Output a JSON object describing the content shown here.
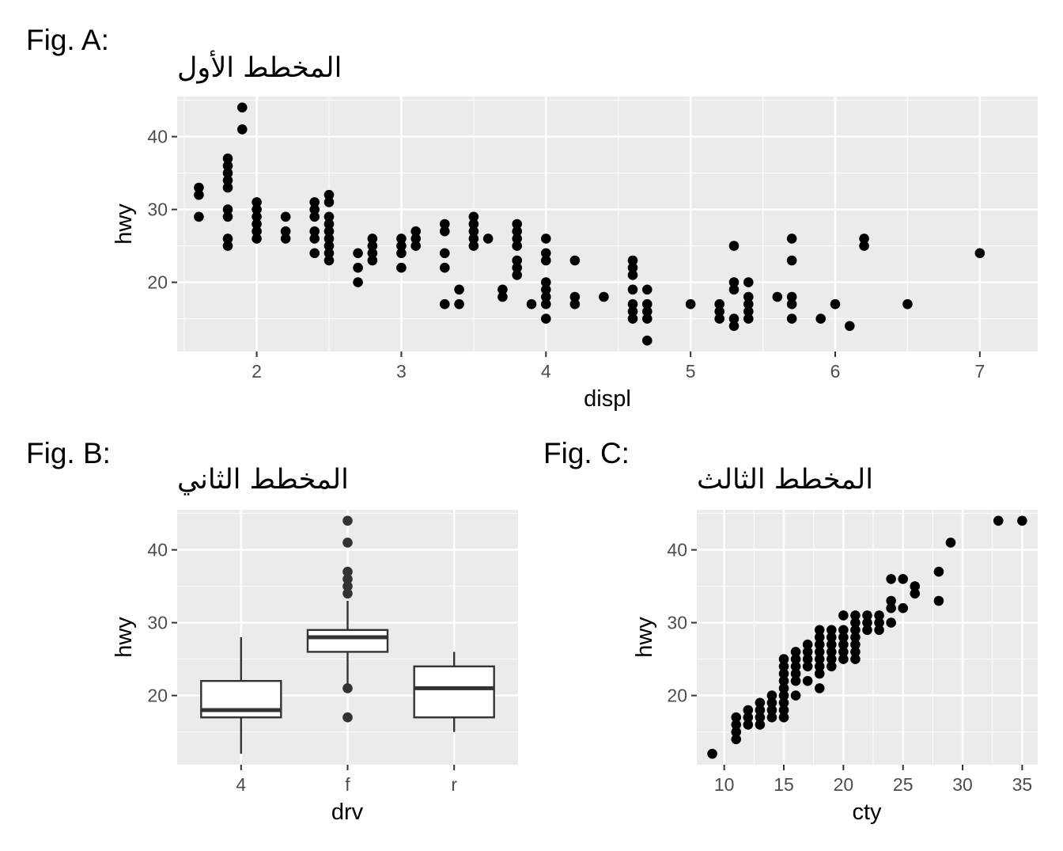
{
  "chart_data": [
    {
      "type": "scatter",
      "tag": "Fig. A:",
      "title": "المخطط الأول",
      "xlabel": "displ",
      "ylabel": "hwy",
      "xlim": [
        1.45,
        7.4
      ],
      "ylim": [
        10.5,
        45.5
      ],
      "xticks": [
        2,
        3,
        4,
        5,
        6,
        7
      ],
      "yticks": [
        20,
        30,
        40
      ],
      "grid": true,
      "points": [
        [
          1.6,
          29
        ],
        [
          1.6,
          32
        ],
        [
          1.6,
          33
        ],
        [
          1.8,
          25
        ],
        [
          1.8,
          26
        ],
        [
          1.8,
          29
        ],
        [
          1.8,
          30
        ],
        [
          1.8,
          33
        ],
        [
          1.8,
          34
        ],
        [
          1.8,
          35
        ],
        [
          1.8,
          36
        ],
        [
          1.8,
          37
        ],
        [
          1.9,
          41
        ],
        [
          1.9,
          44
        ],
        [
          2.0,
          26
        ],
        [
          2.0,
          27
        ],
        [
          2.0,
          28
        ],
        [
          2.0,
          29
        ],
        [
          2.0,
          30
        ],
        [
          2.0,
          31
        ],
        [
          2.2,
          26
        ],
        [
          2.2,
          27
        ],
        [
          2.2,
          29
        ],
        [
          2.4,
          24
        ],
        [
          2.4,
          26
        ],
        [
          2.4,
          27
        ],
        [
          2.4,
          29
        ],
        [
          2.4,
          30
        ],
        [
          2.4,
          31
        ],
        [
          2.5,
          23
        ],
        [
          2.5,
          24
        ],
        [
          2.5,
          25
        ],
        [
          2.5,
          26
        ],
        [
          2.5,
          27
        ],
        [
          2.5,
          28
        ],
        [
          2.5,
          29
        ],
        [
          2.5,
          31
        ],
        [
          2.5,
          32
        ],
        [
          2.7,
          20
        ],
        [
          2.7,
          22
        ],
        [
          2.7,
          24
        ],
        [
          2.8,
          23
        ],
        [
          2.8,
          24
        ],
        [
          2.8,
          25
        ],
        [
          2.8,
          26
        ],
        [
          3.0,
          22
        ],
        [
          3.0,
          24
        ],
        [
          3.0,
          25
        ],
        [
          3.0,
          26
        ],
        [
          3.1,
          25
        ],
        [
          3.1,
          26
        ],
        [
          3.1,
          27
        ],
        [
          3.3,
          17
        ],
        [
          3.3,
          22
        ],
        [
          3.3,
          24
        ],
        [
          3.3,
          27
        ],
        [
          3.3,
          28
        ],
        [
          3.4,
          17
        ],
        [
          3.4,
          19
        ],
        [
          3.5,
          25
        ],
        [
          3.5,
          26
        ],
        [
          3.5,
          27
        ],
        [
          3.5,
          28
        ],
        [
          3.5,
          29
        ],
        [
          3.6,
          26
        ],
        [
          3.7,
          18
        ],
        [
          3.7,
          19
        ],
        [
          3.8,
          21
        ],
        [
          3.8,
          22
        ],
        [
          3.8,
          23
        ],
        [
          3.8,
          25
        ],
        [
          3.8,
          26
        ],
        [
          3.8,
          27
        ],
        [
          3.8,
          28
        ],
        [
          3.9,
          17
        ],
        [
          4.0,
          15
        ],
        [
          4.0,
          17
        ],
        [
          4.0,
          18
        ],
        [
          4.0,
          19
        ],
        [
          4.0,
          20
        ],
        [
          4.0,
          23
        ],
        [
          4.0,
          24
        ],
        [
          4.0,
          26
        ],
        [
          4.2,
          17
        ],
        [
          4.2,
          18
        ],
        [
          4.2,
          23
        ],
        [
          4.4,
          18
        ],
        [
          4.6,
          15
        ],
        [
          4.6,
          16
        ],
        [
          4.6,
          17
        ],
        [
          4.6,
          19
        ],
        [
          4.6,
          21
        ],
        [
          4.6,
          22
        ],
        [
          4.6,
          23
        ],
        [
          4.7,
          12
        ],
        [
          4.7,
          15
        ],
        [
          4.7,
          16
        ],
        [
          4.7,
          17
        ],
        [
          4.7,
          19
        ],
        [
          5.0,
          17
        ],
        [
          5.2,
          15
        ],
        [
          5.2,
          16
        ],
        [
          5.2,
          17
        ],
        [
          5.3,
          14
        ],
        [
          5.3,
          15
        ],
        [
          5.3,
          19
        ],
        [
          5.3,
          20
        ],
        [
          5.3,
          25
        ],
        [
          5.4,
          15
        ],
        [
          5.4,
          16
        ],
        [
          5.4,
          17
        ],
        [
          5.4,
          18
        ],
        [
          5.4,
          20
        ],
        [
          5.6,
          18
        ],
        [
          5.7,
          15
        ],
        [
          5.7,
          17
        ],
        [
          5.7,
          18
        ],
        [
          5.7,
          23
        ],
        [
          5.7,
          26
        ],
        [
          5.9,
          15
        ],
        [
          6.0,
          17
        ],
        [
          6.1,
          14
        ],
        [
          6.2,
          25
        ],
        [
          6.2,
          26
        ],
        [
          6.5,
          17
        ],
        [
          7.0,
          24
        ]
      ]
    },
    {
      "type": "box",
      "tag": "Fig. B:",
      "title": "المخطط الثاني",
      "xlabel": "drv",
      "ylabel": "hwy",
      "categories": [
        "4",
        "f",
        "r"
      ],
      "ylim": [
        10.5,
        45.5
      ],
      "yticks": [
        20,
        30,
        40
      ],
      "grid": true,
      "boxes": [
        {
          "whisker_low": 12,
          "q1": 17,
          "median": 18,
          "q3": 22,
          "whisker_high": 28,
          "outliers": []
        },
        {
          "whisker_low": 21,
          "q1": 26,
          "median": 28,
          "q3": 29,
          "whisker_high": 33,
          "outliers": [
            17,
            21,
            34,
            35,
            36,
            37,
            41,
            44
          ]
        },
        {
          "whisker_low": 15,
          "q1": 17,
          "median": 21,
          "q3": 24,
          "whisker_high": 26,
          "outliers": []
        }
      ]
    },
    {
      "type": "scatter",
      "tag": "Fig. C:",
      "title": "المخطط الثالث",
      "xlabel": "cty",
      "ylabel": "hwy",
      "xlim": [
        7.7,
        36.3
      ],
      "ylim": [
        10.5,
        45.5
      ],
      "xticks": [
        10,
        15,
        20,
        25,
        30,
        35
      ],
      "yticks": [
        20,
        30,
        40
      ],
      "grid": true,
      "points": [
        [
          9,
          12
        ],
        [
          11,
          14
        ],
        [
          11,
          15
        ],
        [
          11,
          16
        ],
        [
          11,
          17
        ],
        [
          12,
          16
        ],
        [
          12,
          17
        ],
        [
          12,
          18
        ],
        [
          13,
          16
        ],
        [
          13,
          17
        ],
        [
          13,
          18
        ],
        [
          13,
          19
        ],
        [
          14,
          17
        ],
        [
          14,
          18
        ],
        [
          14,
          19
        ],
        [
          14,
          20
        ],
        [
          15,
          17
        ],
        [
          15,
          18
        ],
        [
          15,
          19
        ],
        [
          15,
          20
        ],
        [
          15,
          21
        ],
        [
          15,
          22
        ],
        [
          15,
          23
        ],
        [
          15,
          24
        ],
        [
          15,
          25
        ],
        [
          16,
          20
        ],
        [
          16,
          22
        ],
        [
          16,
          23
        ],
        [
          16,
          24
        ],
        [
          16,
          25
        ],
        [
          16,
          26
        ],
        [
          17,
          22
        ],
        [
          17,
          24
        ],
        [
          17,
          25
        ],
        [
          17,
          26
        ],
        [
          17,
          27
        ],
        [
          18,
          21
        ],
        [
          18,
          23
        ],
        [
          18,
          24
        ],
        [
          18,
          25
        ],
        [
          18,
          26
        ],
        [
          18,
          27
        ],
        [
          18,
          28
        ],
        [
          18,
          29
        ],
        [
          19,
          24
        ],
        [
          19,
          25
        ],
        [
          19,
          26
        ],
        [
          19,
          27
        ],
        [
          19,
          28
        ],
        [
          19,
          29
        ],
        [
          20,
          25
        ],
        [
          20,
          26
        ],
        [
          20,
          27
        ],
        [
          20,
          28
        ],
        [
          20,
          29
        ],
        [
          20,
          31
        ],
        [
          21,
          25
        ],
        [
          21,
          26
        ],
        [
          21,
          27
        ],
        [
          21,
          28
        ],
        [
          21,
          29
        ],
        [
          21,
          30
        ],
        [
          21,
          31
        ],
        [
          22,
          29
        ],
        [
          22,
          30
        ],
        [
          22,
          31
        ],
        [
          23,
          29
        ],
        [
          23,
          30
        ],
        [
          23,
          31
        ],
        [
          24,
          30
        ],
        [
          24,
          32
        ],
        [
          24,
          33
        ],
        [
          24,
          36
        ],
        [
          25,
          32
        ],
        [
          25,
          36
        ],
        [
          26,
          34
        ],
        [
          26,
          35
        ],
        [
          28,
          33
        ],
        [
          28,
          37
        ],
        [
          29,
          41
        ],
        [
          33,
          44
        ],
        [
          35,
          44
        ]
      ]
    }
  ]
}
